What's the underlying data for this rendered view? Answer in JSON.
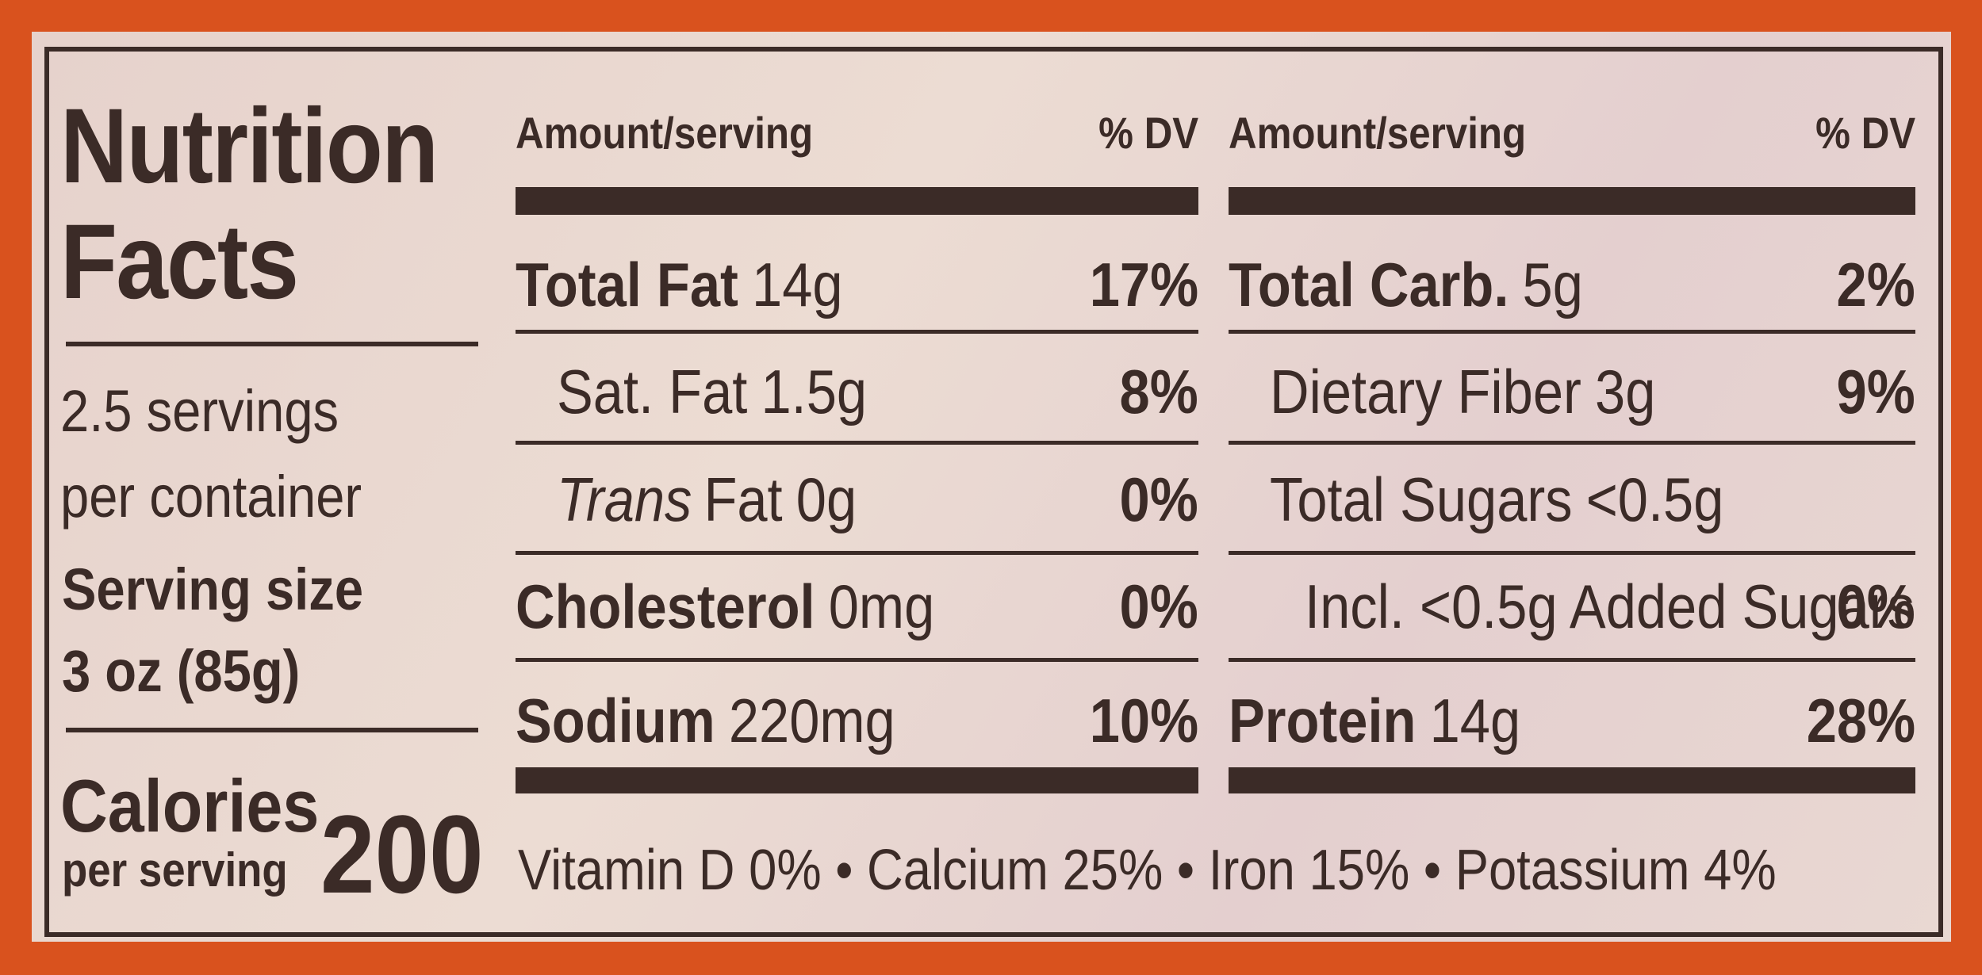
{
  "title": "Nutrition Facts",
  "servings": [
    "2.5 servings",
    "per container"
  ],
  "serving_size": {
    "label": "Serving size",
    "value": "3 oz (85g)"
  },
  "calories": {
    "label": "Calories",
    "sublabel": "per serving",
    "value": "200"
  },
  "tables": [
    {
      "header": {
        "amount": "Amount/serving",
        "dv": "% DV"
      },
      "rows": [
        {
          "name": "Total Fat",
          "amount": "14g",
          "dv": "17%",
          "bold": true
        },
        {
          "name": "Sat. Fat",
          "amount": "1.5g",
          "dv": "8%",
          "indent": 1
        },
        {
          "italic": "Trans",
          "name": "Fat",
          "amount": "0g",
          "dv": "0%",
          "indent": 1
        },
        {
          "name": "Cholesterol",
          "amount": "0mg",
          "dv": "0%",
          "bold": true
        },
        {
          "name": "Sodium",
          "amount": "220mg",
          "dv": "10%",
          "bold": true
        }
      ]
    },
    {
      "header": {
        "amount": "Amount/serving",
        "dv": "% DV"
      },
      "rows": [
        {
          "name": "Total Carb.",
          "amount": "5g",
          "dv": "2%",
          "bold": true
        },
        {
          "name": "Dietary Fiber",
          "amount": "3g",
          "dv": "9%",
          "indent": 1
        },
        {
          "name": "Total Sugars",
          "amount": "<0.5g",
          "indent": 1
        },
        {
          "name": "Incl. <0.5g Added Sugars",
          "dv": "0%",
          "indent": 2
        },
        {
          "name": "Protein",
          "amount": "14g",
          "dv": "28%",
          "bold": true
        }
      ]
    }
  ],
  "footer": "Vitamin D 0% • Calcium 25% • Iron 15% • Potassium 4%"
}
